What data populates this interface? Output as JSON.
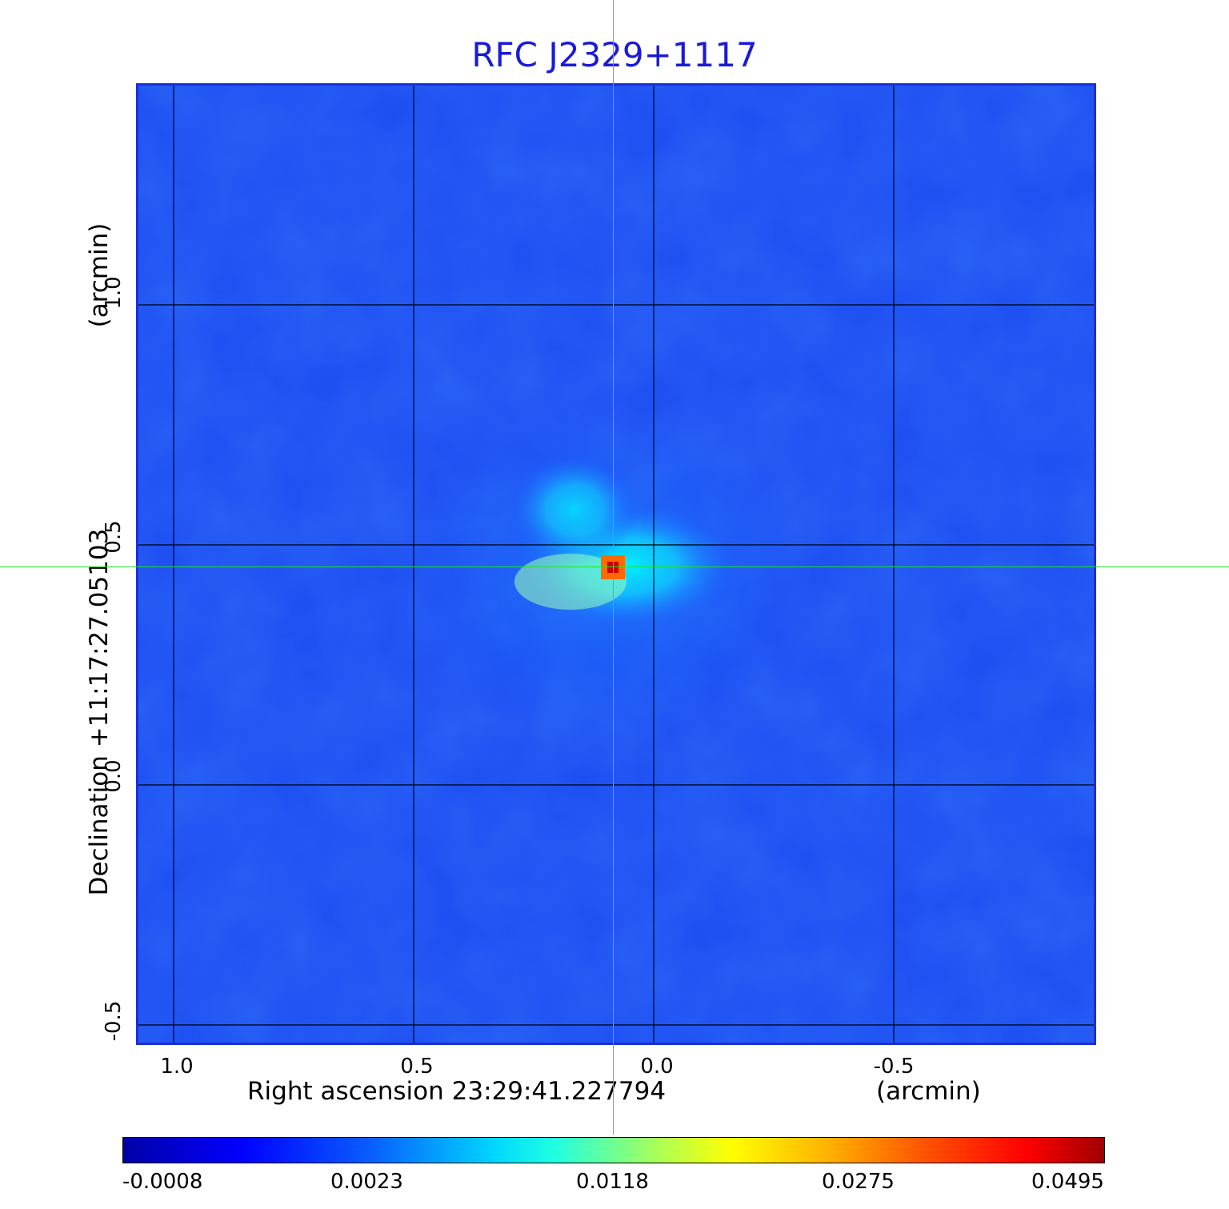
{
  "title": "RFC J2329+1117",
  "axes": {
    "x_label": "Right ascension  23:29:41.227794",
    "x_unit": "(arcmin)",
    "y_label": "Declination  +11:17:27.05103",
    "y_unit": "(arcmin)",
    "x_ticks": [
      "1.0",
      "0.5",
      "0.0",
      "-0.5"
    ],
    "y_ticks": [
      "1.0",
      "0.5",
      "0.0",
      "-0.5"
    ]
  },
  "colorbar": {
    "ticks": [
      "-0.0008",
      "0.0023",
      "0.0118",
      "0.0275",
      "0.0495"
    ]
  },
  "colors": {
    "title": "#1a1ad8",
    "crosshair": "#1ee61e",
    "background_map": "#1e4cf0"
  }
}
